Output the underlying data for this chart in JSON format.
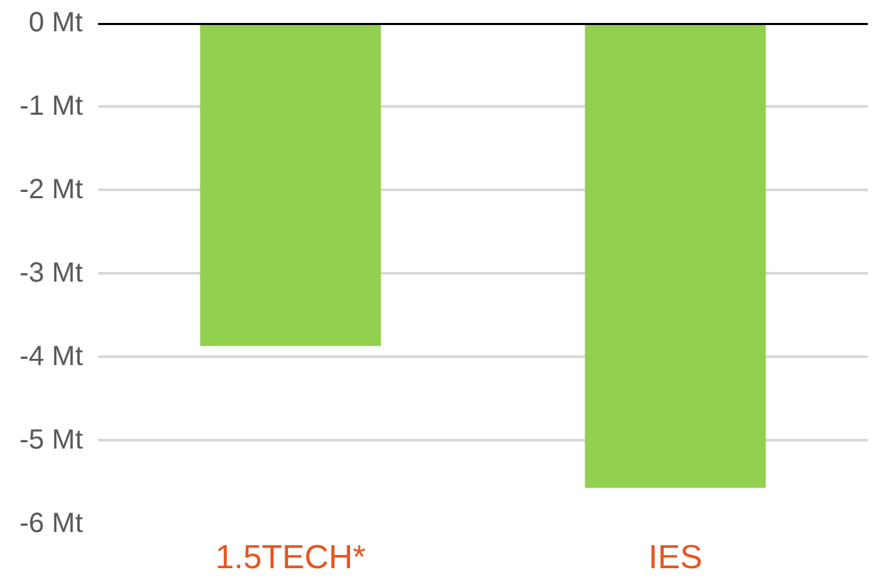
{
  "chart_data": {
    "type": "bar",
    "categories": [
      "1.5TECH*",
      "IES"
    ],
    "values": [
      -3.87,
      -5.57
    ],
    "color": "#92d050",
    "ylim": [
      -6,
      0
    ],
    "yticks": [
      {
        "value": 0,
        "label": "0 Mt"
      },
      {
        "value": -1,
        "label": "-1 Mt"
      },
      {
        "value": -2,
        "label": "-2 Mt"
      },
      {
        "value": -3,
        "label": "-3 Mt"
      },
      {
        "value": -4,
        "label": "-4 Mt"
      },
      {
        "value": -5,
        "label": "-5 Mt"
      },
      {
        "value": -6,
        "label": "-6 Mt"
      }
    ],
    "grid": "y",
    "ref_lines": [
      {
        "axis": "y",
        "value": 0,
        "color": "#000000"
      }
    ]
  }
}
